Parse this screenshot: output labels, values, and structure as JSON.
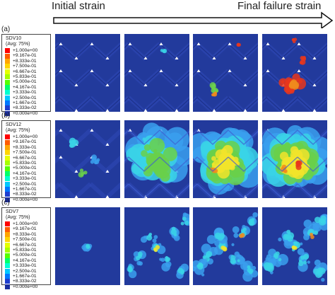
{
  "header": {
    "initial_label": "Initial strain",
    "final_label": "Final failure strain"
  },
  "rows": [
    {
      "label": "(a)",
      "legend_title_line1": "SDV10",
      "legend_title_line2": "(Avg: 75%)",
      "panel_names": [
        "sdv10-panel-1",
        "sdv10-panel-2",
        "sdv10-panel-3",
        "sdv10-panel-4"
      ]
    },
    {
      "label": "(b)",
      "legend_title_line1": "SDV12",
      "legend_title_line2": "(Avg: 75%)",
      "panel_names": [
        "sdv12-panel-1",
        "sdv12-panel-2",
        "sdv12-panel-3",
        "sdv12-panel-4"
      ]
    },
    {
      "label": "(c)",
      "legend_title_line1": "SDV7",
      "legend_title_line2": "(Avg: 75%)",
      "panel_names": [
        "sdv7-panel-1",
        "sdv7-panel-2",
        "sdv7-panel-3",
        "sdv7-panel-4"
      ]
    }
  ],
  "legend_values": [
    "+1.000e+00",
    "+9.167e-01",
    "+8.333e-01",
    "+7.500e-01",
    "+6.667e-01",
    "+5.833e-01",
    "+5.000e-01",
    "+4.167e-01",
    "+3.333e-01",
    "+2.500e-01",
    "+1.667e-01",
    "+8.333e-02",
    "+0.000e+00"
  ],
  "legend_colors": [
    "#ff0000",
    "#ff5a00",
    "#ffa500",
    "#ffd500",
    "#e5ff00",
    "#a6ff00",
    "#55ff00",
    "#00ff6a",
    "#00ffd0",
    "#00c8ff",
    "#0078ff",
    "#1f3fcf",
    "#1a2e9e"
  ],
  "colors": {
    "panel_base": "#223a9c",
    "panel_base_dark": "#1a2d82",
    "stripe": "#2e48b5",
    "hot_red": "#e8361c",
    "hot_orange": "#f08a1c",
    "hot_yellow": "#f2e42a",
    "green": "#6ad04a",
    "cyan": "#3ad3e6",
    "light_blue": "#3aa0ee"
  }
}
